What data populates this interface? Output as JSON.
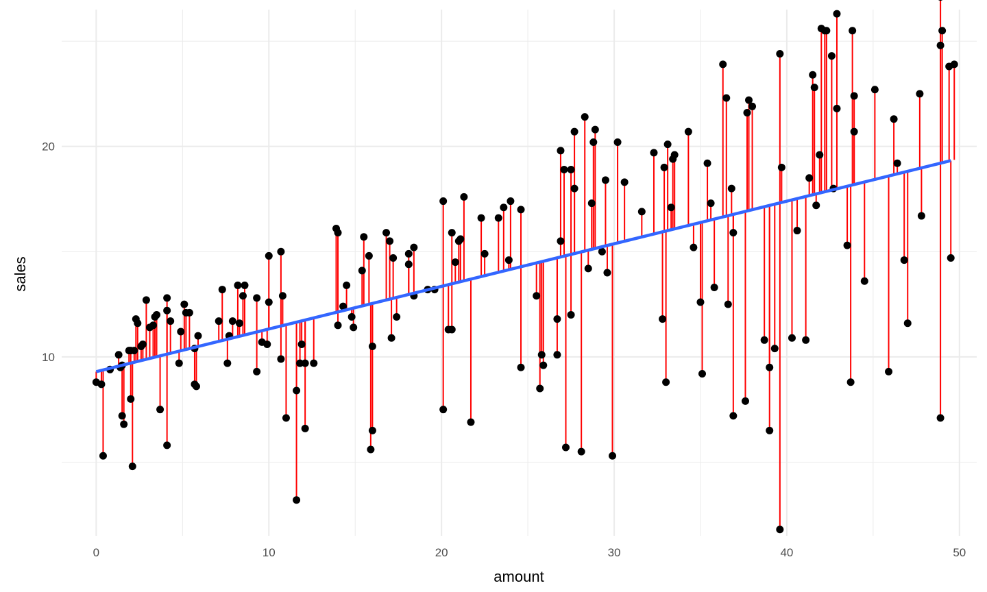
{
  "chart_data": {
    "type": "scatter",
    "title": "",
    "xlabel": "amount",
    "ylabel": "sales",
    "xlim": [
      -2,
      51
    ],
    "ylim": [
      1.5,
      26.5
    ],
    "x_ticks": [
      0,
      10,
      20,
      30,
      40,
      50
    ],
    "y_ticks": [
      10,
      20
    ],
    "x_tick_labels": [
      "0",
      "10",
      "20",
      "30",
      "40",
      "50"
    ],
    "y_tick_labels": [
      "10",
      "20"
    ],
    "grid": true,
    "legend": "none",
    "colors": {
      "points": "#000000",
      "residuals": "#ff0000",
      "fit_line": "#3366ff",
      "grid": "#ebebeb"
    },
    "fit_line": {
      "intercept": 9.3,
      "slope": 0.2025,
      "x_range": [
        0,
        49.5
      ]
    },
    "points": [
      [
        0.0,
        8.8
      ],
      [
        0.3,
        8.7
      ],
      [
        0.4,
        5.3
      ],
      [
        0.8,
        9.4
      ],
      [
        1.3,
        10.1
      ],
      [
        1.4,
        9.5
      ],
      [
        1.5,
        9.6
      ],
      [
        1.5,
        7.2
      ],
      [
        1.6,
        6.8
      ],
      [
        1.9,
        10.3
      ],
      [
        2.0,
        8.0
      ],
      [
        2.0,
        10.3
      ],
      [
        2.1,
        4.8
      ],
      [
        2.2,
        10.3
      ],
      [
        2.3,
        11.8
      ],
      [
        2.4,
        11.6
      ],
      [
        2.6,
        10.5
      ],
      [
        2.7,
        10.6
      ],
      [
        2.9,
        12.7
      ],
      [
        3.1,
        11.4
      ],
      [
        3.3,
        11.5
      ],
      [
        3.4,
        11.9
      ],
      [
        3.5,
        12.0
      ],
      [
        3.7,
        7.5
      ],
      [
        4.1,
        12.8
      ],
      [
        4.1,
        5.8
      ],
      [
        4.1,
        12.2
      ],
      [
        4.3,
        11.7
      ],
      [
        4.8,
        9.7
      ],
      [
        4.9,
        11.2
      ],
      [
        5.1,
        12.5
      ],
      [
        5.2,
        12.1
      ],
      [
        5.4,
        12.1
      ],
      [
        5.7,
        8.7
      ],
      [
        5.7,
        10.4
      ],
      [
        5.8,
        8.6
      ],
      [
        5.9,
        11.0
      ],
      [
        7.1,
        11.7
      ],
      [
        7.3,
        13.2
      ],
      [
        7.6,
        9.7
      ],
      [
        7.7,
        11.0
      ],
      [
        7.9,
        11.7
      ],
      [
        8.2,
        13.4
      ],
      [
        8.3,
        11.6
      ],
      [
        8.5,
        12.9
      ],
      [
        8.6,
        13.4
      ],
      [
        9.3,
        9.3
      ],
      [
        9.3,
        12.8
      ],
      [
        9.6,
        10.7
      ],
      [
        9.9,
        10.6
      ],
      [
        10.0,
        12.6
      ],
      [
        10.0,
        14.8
      ],
      [
        10.7,
        15.0
      ],
      [
        10.7,
        9.9
      ],
      [
        10.8,
        12.9
      ],
      [
        11.0,
        7.1
      ],
      [
        11.6,
        3.2
      ],
      [
        11.6,
        8.4
      ],
      [
        11.8,
        9.7
      ],
      [
        11.9,
        10.6
      ],
      [
        12.1,
        9.7
      ],
      [
        12.1,
        6.6
      ],
      [
        12.6,
        9.7
      ],
      [
        13.9,
        16.1
      ],
      [
        14.0,
        15.9
      ],
      [
        14.0,
        11.5
      ],
      [
        14.3,
        12.4
      ],
      [
        14.5,
        13.4
      ],
      [
        14.8,
        11.9
      ],
      [
        14.9,
        11.4
      ],
      [
        15.4,
        14.1
      ],
      [
        15.5,
        15.7
      ],
      [
        15.8,
        14.8
      ],
      [
        15.9,
        5.6
      ],
      [
        16.0,
        6.5
      ],
      [
        16.0,
        10.5
      ],
      [
        16.8,
        15.9
      ],
      [
        17.0,
        15.5
      ],
      [
        17.1,
        10.9
      ],
      [
        17.2,
        14.7
      ],
      [
        17.4,
        11.9
      ],
      [
        18.1,
        14.9
      ],
      [
        18.1,
        14.4
      ],
      [
        18.4,
        12.9
      ],
      [
        18.4,
        15.2
      ],
      [
        19.2,
        13.2
      ],
      [
        19.6,
        13.2
      ],
      [
        20.1,
        17.4
      ],
      [
        20.1,
        7.5
      ],
      [
        20.4,
        11.3
      ],
      [
        20.6,
        11.3
      ],
      [
        20.6,
        15.9
      ],
      [
        20.8,
        14.5
      ],
      [
        21.0,
        15.5
      ],
      [
        21.1,
        15.6
      ],
      [
        21.3,
        17.6
      ],
      [
        21.7,
        6.9
      ],
      [
        22.3,
        16.6
      ],
      [
        22.5,
        14.9
      ],
      [
        23.3,
        16.6
      ],
      [
        23.6,
        17.1
      ],
      [
        23.9,
        14.6
      ],
      [
        24.0,
        17.4
      ],
      [
        24.6,
        9.5
      ],
      [
        24.6,
        17.0
      ],
      [
        25.5,
        12.9
      ],
      [
        25.7,
        8.5
      ],
      [
        25.8,
        10.1
      ],
      [
        25.9,
        9.6
      ],
      [
        26.7,
        10.1
      ],
      [
        26.7,
        11.8
      ],
      [
        26.9,
        19.8
      ],
      [
        26.9,
        15.5
      ],
      [
        27.1,
        18.9
      ],
      [
        27.2,
        5.7
      ],
      [
        27.5,
        12.0
      ],
      [
        27.5,
        18.9
      ],
      [
        27.7,
        20.7
      ],
      [
        27.7,
        18.0
      ],
      [
        28.1,
        5.5
      ],
      [
        28.3,
        21.4
      ],
      [
        28.5,
        14.2
      ],
      [
        28.7,
        17.3
      ],
      [
        28.8,
        20.2
      ],
      [
        28.9,
        20.8
      ],
      [
        29.3,
        15.0
      ],
      [
        29.5,
        18.4
      ],
      [
        29.6,
        14.0
      ],
      [
        29.9,
        5.3
      ],
      [
        30.2,
        20.2
      ],
      [
        30.6,
        18.3
      ],
      [
        31.6,
        16.9
      ],
      [
        32.3,
        19.7
      ],
      [
        32.8,
        11.8
      ],
      [
        32.9,
        19.0
      ],
      [
        33.0,
        8.8
      ],
      [
        33.1,
        20.1
      ],
      [
        33.3,
        17.1
      ],
      [
        33.4,
        19.4
      ],
      [
        33.5,
        19.6
      ],
      [
        34.3,
        20.7
      ],
      [
        34.6,
        15.2
      ],
      [
        35.0,
        12.6
      ],
      [
        35.1,
        9.2
      ],
      [
        35.4,
        19.2
      ],
      [
        35.6,
        17.3
      ],
      [
        35.8,
        13.3
      ],
      [
        36.3,
        23.9
      ],
      [
        36.5,
        22.3
      ],
      [
        36.6,
        12.5
      ],
      [
        36.8,
        18.0
      ],
      [
        36.9,
        7.2
      ],
      [
        36.9,
        15.9
      ],
      [
        37.6,
        7.9
      ],
      [
        37.7,
        21.6
      ],
      [
        37.8,
        22.2
      ],
      [
        38.0,
        21.9
      ],
      [
        38.7,
        10.8
      ],
      [
        39.0,
        6.5
      ],
      [
        39.0,
        9.5
      ],
      [
        39.3,
        10.4
      ],
      [
        39.6,
        24.4
      ],
      [
        39.6,
        1.8
      ],
      [
        39.7,
        19.0
      ],
      [
        40.3,
        10.9
      ],
      [
        40.6,
        16.0
      ],
      [
        41.1,
        10.8
      ],
      [
        41.3,
        18.5
      ],
      [
        41.5,
        23.4
      ],
      [
        41.6,
        22.8
      ],
      [
        41.7,
        17.2
      ],
      [
        41.9,
        19.6
      ],
      [
        42.0,
        25.6
      ],
      [
        42.2,
        25.5
      ],
      [
        42.3,
        25.5
      ],
      [
        42.6,
        24.3
      ],
      [
        42.7,
        18.0
      ],
      [
        42.9,
        26.3
      ],
      [
        42.9,
        21.8
      ],
      [
        43.5,
        15.3
      ],
      [
        43.7,
        8.8
      ],
      [
        43.8,
        25.5
      ],
      [
        43.9,
        22.4
      ],
      [
        43.9,
        20.7
      ],
      [
        44.5,
        13.6
      ],
      [
        45.1,
        22.7
      ],
      [
        45.9,
        9.3
      ],
      [
        46.2,
        21.3
      ],
      [
        46.4,
        19.2
      ],
      [
        46.8,
        14.6
      ],
      [
        47.0,
        11.6
      ],
      [
        47.7,
        22.5
      ],
      [
        47.8,
        16.7
      ],
      [
        48.9,
        27.1
      ],
      [
        48.9,
        7.1
      ],
      [
        48.9,
        24.8
      ],
      [
        49.0,
        25.5
      ],
      [
        49.4,
        23.8
      ],
      [
        49.5,
        14.7
      ],
      [
        49.7,
        23.9
      ]
    ]
  }
}
